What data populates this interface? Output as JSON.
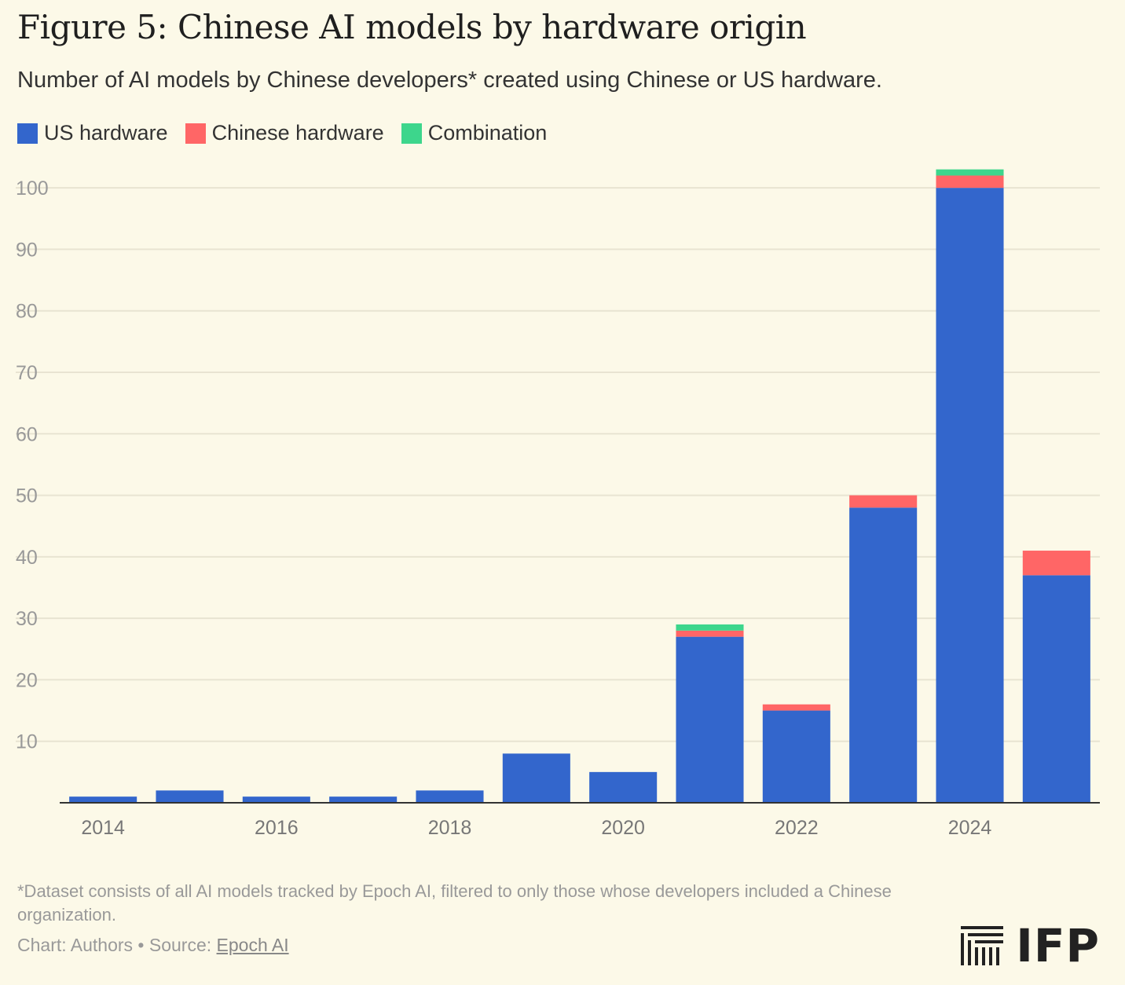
{
  "title": "Figure 5: Chinese AI models by hardware origin",
  "subtitle": "Number of AI models by Chinese developers* created using Chinese or US hardware.",
  "legend": [
    {
      "label": "US hardware",
      "color": "#3366cc"
    },
    {
      "label": "Chinese hardware",
      "color": "#ff6666"
    },
    {
      "label": "Combination",
      "color": "#3dd68c"
    }
  ],
  "chart_data": {
    "type": "bar",
    "stacked": true,
    "categories": [
      "2014",
      "2015",
      "2016",
      "2017",
      "2018",
      "2019",
      "2020",
      "2021",
      "2022",
      "2023",
      "2024",
      "2025"
    ],
    "x_tick_labels": [
      "2014",
      "2016",
      "2018",
      "2020",
      "2022",
      "2024"
    ],
    "series": [
      {
        "name": "US hardware",
        "color": "#3366cc",
        "values": [
          1,
          2,
          1,
          1,
          2,
          8,
          5,
          27,
          15,
          48,
          100,
          37
        ]
      },
      {
        "name": "Chinese hardware",
        "color": "#ff6666",
        "values": [
          0,
          0,
          0,
          0,
          0,
          0,
          0,
          1,
          1,
          2,
          2,
          4
        ]
      },
      {
        "name": "Combination",
        "color": "#3dd68c",
        "values": [
          0,
          0,
          0,
          0,
          0,
          0,
          0,
          1,
          0,
          0,
          1,
          0
        ]
      }
    ],
    "y_ticks": [
      10,
      20,
      30,
      40,
      50,
      60,
      70,
      80,
      90,
      100
    ],
    "ylim": [
      0,
      105
    ],
    "xlabel": "",
    "ylabel": "",
    "grid": true
  },
  "footnote": "*Dataset consists of all AI models tracked by Epoch AI, filtered to only those whose developers included a Chinese organization.",
  "credit": {
    "chart": "Chart: Authors",
    "separator": " • ",
    "source_label": "Source: ",
    "source_link": "Epoch AI"
  },
  "logo": {
    "text": "IFP"
  }
}
